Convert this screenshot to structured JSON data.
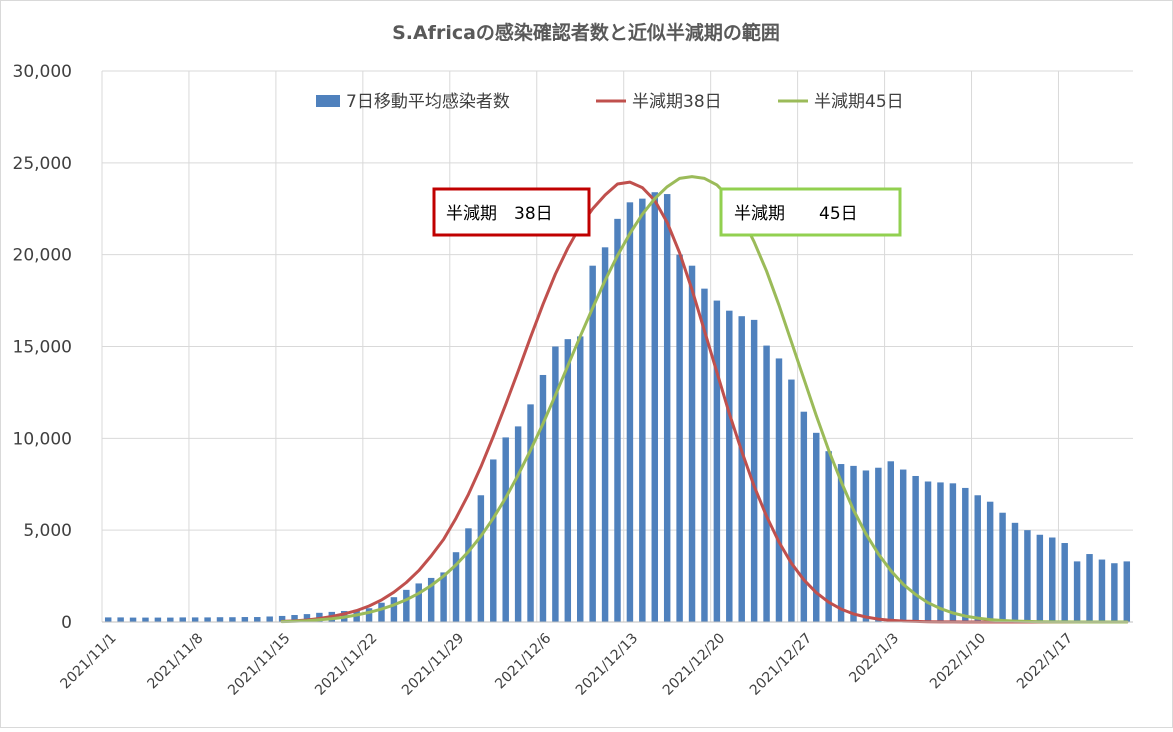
{
  "chart_data": {
    "type": "bar",
    "title": "S.Africaの感染確認者数と近似半減期の範囲",
    "xlabel": "",
    "ylabel": "",
    "ylim": [
      0,
      30000
    ],
    "yticks": [
      0,
      5000,
      10000,
      15000,
      20000,
      25000,
      30000
    ],
    "ytick_labels": [
      "0",
      "5,000",
      "10,000",
      "15,000",
      "20,000",
      "25,000",
      "30,000"
    ],
    "start_date": "2021-11-01",
    "xtick_labels": [
      "2021/11/1",
      "2021/11/8",
      "2021/11/15",
      "2021/11/22",
      "2021/11/29",
      "2021/12/6",
      "2021/12/13",
      "2021/12/20",
      "2021/12/27",
      "2022/1/3",
      "2022/1/10",
      "2022/1/17"
    ],
    "grid": true,
    "legend_position": "top",
    "series": [
      {
        "name": "7日移動平均感染者数",
        "kind": "bar",
        "color": "#4F81BD",
        "values": [
          250,
          250,
          240,
          240,
          240,
          240,
          250,
          250,
          250,
          260,
          260,
          270,
          270,
          300,
          330,
          380,
          430,
          500,
          550,
          600,
          660,
          750,
          1050,
          1350,
          1750,
          2100,
          2400,
          2700,
          3800,
          5100,
          6900,
          8850,
          10050,
          10650,
          11850,
          13450,
          15000,
          15400,
          15550,
          19400,
          20400,
          21950,
          22850,
          23050,
          23400,
          23300,
          20000,
          19400,
          18150,
          17500,
          16950,
          16650,
          16450,
          15050,
          14350,
          13200,
          11450,
          10300,
          9300,
          8600,
          8500,
          8250,
          8400,
          8750,
          8300,
          7950,
          7650,
          7600,
          7550,
          7300,
          6900,
          6550,
          5950,
          5400,
          5000,
          4750,
          4600,
          4300,
          3300,
          3700,
          3400,
          3200,
          3300
        ]
      },
      {
        "name": "半減期38日",
        "kind": "line",
        "color": "#C0504D",
        "values": [
          null,
          null,
          null,
          null,
          null,
          null,
          null,
          null,
          null,
          null,
          null,
          null,
          null,
          null,
          30,
          60,
          110,
          190,
          300,
          440,
          620,
          870,
          1200,
          1620,
          2150,
          2800,
          3600,
          4500,
          5650,
          6950,
          8450,
          10100,
          11850,
          13650,
          15500,
          17300,
          18950,
          20350,
          21550,
          22500,
          23250,
          23850,
          23950,
          23650,
          22950,
          21750,
          20100,
          18100,
          15850,
          13600,
          11350,
          9300,
          7400,
          5750,
          4350,
          3200,
          2300,
          1600,
          1080,
          700,
          440,
          270,
          160,
          90,
          50,
          30,
          15,
          8,
          4,
          2,
          0,
          0,
          0,
          0,
          0,
          0,
          0,
          0,
          0,
          0,
          0,
          0,
          0
        ]
      },
      {
        "name": "半減期45日",
        "kind": "line",
        "color": "#9BBB59",
        "values": [
          null,
          null,
          null,
          null,
          null,
          null,
          null,
          null,
          null,
          null,
          null,
          null,
          null,
          null,
          20,
          40,
          70,
          120,
          180,
          260,
          380,
          520,
          700,
          930,
          1210,
          1560,
          1990,
          2500,
          3110,
          3830,
          4670,
          5650,
          6760,
          8000,
          9350,
          10800,
          12350,
          13950,
          15550,
          17100,
          18600,
          19950,
          21150,
          22200,
          23050,
          23700,
          24150,
          24250,
          24150,
          23800,
          23100,
          22050,
          20700,
          19100,
          17250,
          15250,
          13250,
          11250,
          9350,
          7650,
          6100,
          4800,
          3700,
          2800,
          2050,
          1500,
          1050,
          730,
          490,
          320,
          210,
          130,
          80,
          50,
          30,
          15,
          8,
          4,
          2,
          1,
          0,
          0,
          0
        ]
      }
    ],
    "annotations": [
      {
        "text": "半減期　38日",
        "color": "#C00000"
      },
      {
        "text": "半減期　　45日",
        "color": "#92D050"
      }
    ]
  }
}
